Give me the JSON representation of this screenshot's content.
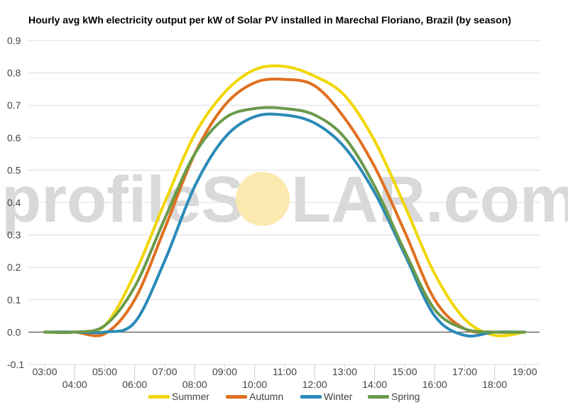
{
  "chart_data": {
    "type": "line",
    "title": "Hourly avg kWh electricity output per kW of Solar PV installed in Marechal Floriano, Brazil (by season)",
    "xlabel": "",
    "ylabel": "",
    "x": [
      "03:00",
      "04:00",
      "05:00",
      "06:00",
      "07:00",
      "08:00",
      "09:00",
      "10:00",
      "11:00",
      "12:00",
      "13:00",
      "14:00",
      "15:00",
      "16:00",
      "17:00",
      "18:00",
      "19:00"
    ],
    "ylim": [
      -0.1,
      0.9
    ],
    "yticks": [
      "-0.1",
      "0.0",
      "0.1",
      "0.2",
      "0.3",
      "0.4",
      "0.5",
      "0.6",
      "0.7",
      "0.8",
      "0.9"
    ],
    "grid": true,
    "legend_position": "bottom",
    "series": [
      {
        "name": "Summer",
        "color": "#f2d600",
        "values": [
          0.0,
          0.0,
          0.02,
          0.18,
          0.4,
          0.61,
          0.74,
          0.81,
          0.82,
          0.79,
          0.73,
          0.59,
          0.39,
          0.18,
          0.04,
          -0.01,
          0.0
        ]
      },
      {
        "name": "Autumn",
        "color": "#e07020",
        "values": [
          0.0,
          0.0,
          -0.005,
          0.1,
          0.32,
          0.55,
          0.7,
          0.77,
          0.78,
          0.76,
          0.66,
          0.51,
          0.31,
          0.1,
          0.01,
          0.0,
          0.0
        ]
      },
      {
        "name": "Winter",
        "color": "#2a8ab8",
        "values": [
          0.0,
          0.0,
          0.0,
          0.03,
          0.22,
          0.45,
          0.6,
          0.665,
          0.67,
          0.645,
          0.57,
          0.43,
          0.24,
          0.05,
          -0.01,
          0.0,
          0.0
        ]
      },
      {
        "name": "Spring",
        "color": "#6a9a4a",
        "values": [
          0.0,
          0.0,
          0.02,
          0.14,
          0.35,
          0.55,
          0.66,
          0.69,
          0.69,
          0.67,
          0.6,
          0.45,
          0.25,
          0.07,
          0.01,
          0.0,
          0.0
        ]
      }
    ]
  },
  "watermark": {
    "text_left": "profileS",
    "text_right": "LAR.com",
    "sun_color": "#fbe9b0",
    "text_color": "#d9d9d9"
  }
}
